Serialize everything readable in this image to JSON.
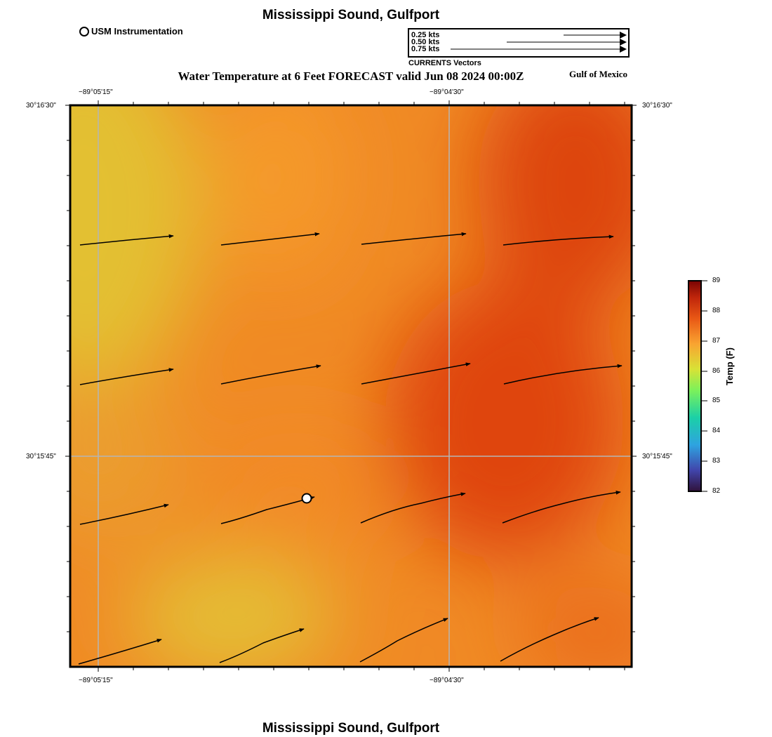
{
  "header": {
    "title": "Mississippi Sound, Gulfport",
    "station_legend": "USM Instrumentation",
    "subtitle": "Water Temperature at 6 Feet FORECAST valid Jun 08 2024 00:00Z",
    "region": "Gulf of Mexico"
  },
  "vector_legend": {
    "entries": [
      {
        "label": "0.25 kts",
        "speed": 0.25
      },
      {
        "label": "0.50 kts",
        "speed": 0.5
      },
      {
        "label": "0.75 kts",
        "speed": 0.75
      }
    ],
    "caption": "CURRENTS Vectors"
  },
  "axes": {
    "lon_top": [
      "−89°05'15\"",
      "−89°04'30\""
    ],
    "lon_bottom": [
      "−89°05'15\"",
      "−89°04'30\""
    ],
    "lat_left": [
      "30°16'30\"",
      "30°15'45\""
    ],
    "lat_right": [
      "30°16'30\"",
      "30°15'45\""
    ]
  },
  "colorbar": {
    "title": "Temp (F)",
    "min": 82,
    "max": 89,
    "ticks": [
      "89",
      "88",
      "87",
      "86",
      "85",
      "84",
      "83",
      "82"
    ]
  },
  "map": {
    "field": "water temperature",
    "colors": {
      "warm_min": "#e3c033",
      "mid": "#f59a2c",
      "warm_max": "#dd4410"
    }
  },
  "footer": {
    "title": "Mississippi Sound, Gulfport"
  }
}
